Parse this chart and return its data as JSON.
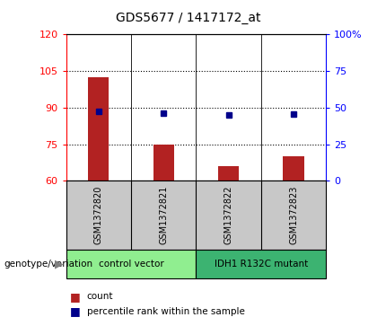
{
  "title": "GDS5677 / 1417172_at",
  "samples": [
    "GSM1372820",
    "GSM1372821",
    "GSM1372822",
    "GSM1372823"
  ],
  "counts": [
    102.5,
    75.0,
    66.0,
    70.0
  ],
  "percentiles": [
    47.5,
    46.0,
    45.0,
    45.5
  ],
  "groups": [
    {
      "label": "control vector",
      "cols": [
        0,
        1
      ],
      "color": "#90EE90"
    },
    {
      "label": "IDH1 R132C mutant",
      "cols": [
        2,
        3
      ],
      "color": "#3CB371"
    }
  ],
  "ylim_left": [
    60,
    120
  ],
  "ylim_right": [
    0,
    100
  ],
  "yticks_left": [
    60,
    75,
    90,
    105,
    120
  ],
  "yticks_right": [
    0,
    25,
    50,
    75,
    100
  ],
  "yticklabels_right": [
    "0",
    "25",
    "50",
    "75",
    "100%"
  ],
  "bar_color": "#B22222",
  "marker_color": "#00008B",
  "bar_bottom": 60,
  "label_bg": "#C8C8C8",
  "group_colors": [
    "#90EE90",
    "#3CB371"
  ],
  "legend_count_label": "count",
  "legend_pct_label": "percentile rank within the sample",
  "legend_count_color": "#B22222",
  "legend_pct_color": "#00008B",
  "genotype_label": "genotype/variation"
}
